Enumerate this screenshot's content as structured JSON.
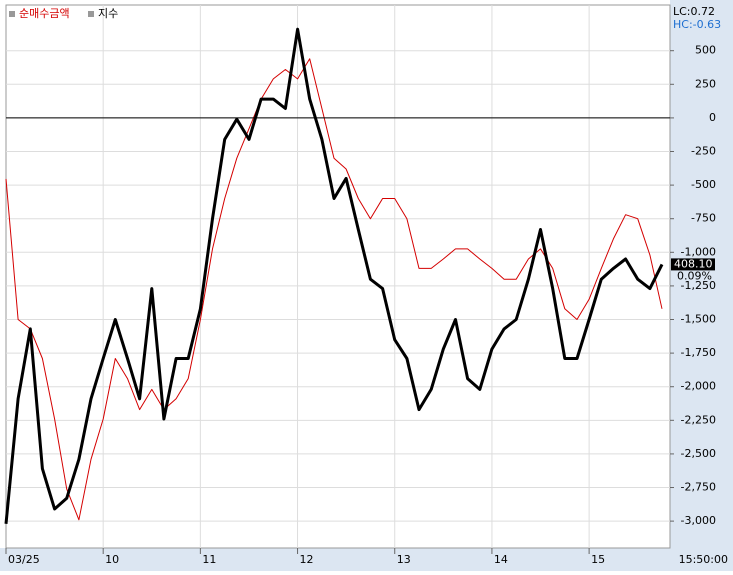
{
  "chart_data": {
    "type": "line",
    "legend": [
      "순매수금액",
      "지수"
    ],
    "header_labels": [
      "LC:0.72",
      "HC:-0.63"
    ],
    "last_label": "408.10",
    "change_label": "0.09%",
    "time_label": "15:50:00",
    "categories": [
      "03/25",
      null,
      null,
      null,
      null,
      null,
      null,
      null,
      "10",
      null,
      null,
      null,
      null,
      null,
      null,
      null,
      "11",
      null,
      null,
      null,
      null,
      null,
      null,
      null,
      "12",
      null,
      null,
      null,
      null,
      null,
      null,
      null,
      "13",
      null,
      null,
      null,
      null,
      null,
      null,
      null,
      "14",
      null,
      null,
      null,
      null,
      null,
      null,
      null,
      "15",
      null,
      null,
      null,
      null,
      null,
      null
    ],
    "series": [
      {
        "name": "순매수금액",
        "color": "#d40000",
        "width": 1,
        "values": [
          -454,
          -1500,
          -1570,
          -1790,
          -2240,
          -2760,
          -2990,
          -2540,
          -2240,
          -1790,
          -1940,
          -2170,
          -2020,
          -2170,
          -2090,
          -1940,
          -1500,
          -975,
          -600,
          -300,
          -80,
          140,
          290,
          360,
          290,
          440,
          70,
          -300,
          -380,
          -600,
          -750,
          -600,
          -600,
          -750,
          -1120,
          -1120,
          -1050,
          -975,
          -975,
          -1050,
          -1120,
          -1200,
          -1200,
          -1050,
          -975,
          -1120,
          -1420,
          -1500,
          -1350,
          -1120,
          -900,
          -720,
          -750,
          -1020,
          -1420
        ]
      },
      {
        "name": "지수",
        "color": "#000000",
        "width": 3,
        "values": [
          -3020,
          -2090,
          -1570,
          -2610,
          -2910,
          -2830,
          -2540,
          -2090,
          -1790,
          -1500,
          -1790,
          -2090,
          -1270,
          -2240,
          -1790,
          -1790,
          -1420,
          -750,
          -160,
          -10,
          -160,
          140,
          140,
          70,
          660,
          140,
          -160,
          -600,
          -450,
          -830,
          -1200,
          -1270,
          -1650,
          -1790,
          -2170,
          -2020,
          -1720,
          -1500,
          -1940,
          -2020,
          -1720,
          -1570,
          -1500,
          -1200,
          -830,
          -1270,
          -1790,
          -1790,
          -1500,
          -1200,
          -1120,
          -1050,
          -1200,
          -1270,
          -1090
        ]
      }
    ],
    "ylim": [
      -3200,
      840
    ],
    "yticks": [
      500,
      250,
      0,
      -250,
      -500,
      -750,
      {
        "value": -1000,
        "label": "-1,000"
      },
      {
        "value": -1250,
        "label": "-1,250"
      },
      {
        "value": -1500,
        "label": "-1,500"
      },
      {
        "value": -1750,
        "label": "-1,750"
      },
      {
        "value": -2000,
        "label": "-2,000"
      },
      {
        "value": -2250,
        "label": "-2,250"
      },
      {
        "value": -2500,
        "label": "-2,500"
      },
      {
        "value": -2750,
        "label": "-2,750"
      },
      {
        "value": -3000,
        "label": "-3,000"
      }
    ],
    "zero_line": 0,
    "grid": true
  }
}
